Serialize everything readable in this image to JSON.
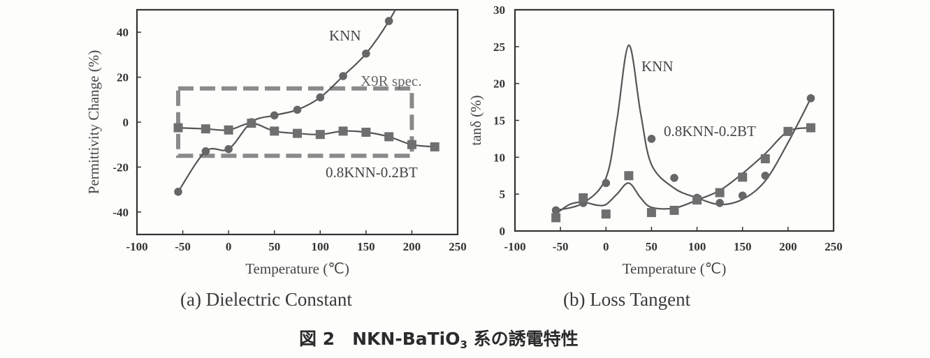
{
  "chart_data": [
    {
      "type": "line",
      "caption": "(a) Dielectric Constant",
      "xlabel": "Temperature (℃)",
      "ylabel": "Permittivity Change (%)",
      "xlim": [
        -100,
        250
      ],
      "ylim": [
        -50,
        50
      ],
      "xticks": [
        -100,
        -50,
        0,
        50,
        100,
        150,
        200,
        250
      ],
      "yticks": [
        -40,
        -20,
        0,
        20,
        40
      ],
      "grid": false,
      "series": [
        {
          "name": "KNN",
          "marker": "circle",
          "x": [
            -55,
            -25,
            0,
            25,
            50,
            75,
            100,
            125,
            150,
            175
          ],
          "values": [
            -31,
            -13,
            -12,
            0,
            3,
            5.5,
            11,
            20.5,
            30.5,
            45
          ]
        },
        {
          "name": "0.8KNN-0.2BT",
          "marker": "square",
          "x": [
            -55,
            -25,
            0,
            25,
            50,
            75,
            100,
            125,
            150,
            175,
            200,
            225
          ],
          "values": [
            -2.5,
            -3,
            -3.5,
            -0.5,
            -4,
            -5,
            -5.5,
            -4,
            -4.5,
            -6.5,
            -10,
            -11
          ]
        }
      ],
      "annotations": [
        {
          "text": "X9R spec.",
          "type": "dashed-box",
          "x_range": [
            -55,
            200
          ],
          "y_range": [
            -15,
            15
          ]
        }
      ]
    },
    {
      "type": "line",
      "caption": "(b) Loss Tangent",
      "xlabel": "Temperature (℃)",
      "ylabel": "tanδ (%)",
      "xlim": [
        -100,
        250
      ],
      "ylim": [
        0,
        30
      ],
      "xticks": [
        -100,
        -50,
        0,
        50,
        100,
        150,
        200,
        250
      ],
      "yticks": [
        0,
        5,
        10,
        15,
        20,
        25,
        30
      ],
      "grid": false,
      "series": [
        {
          "name": "KNN",
          "marker": "circle",
          "x": [
            -55,
            -25,
            0,
            50,
            75,
            100,
            125,
            150,
            175,
            225
          ],
          "values": [
            2.8,
            3.8,
            6.5,
            12.5,
            7.2,
            4.5,
            3.8,
            4.8,
            7.5,
            18
          ]
        },
        {
          "name": "0.8KNN-0.2BT",
          "marker": "square",
          "x": [
            -55,
            -25,
            0,
            25,
            50,
            75,
            100,
            125,
            150,
            175,
            200,
            225
          ],
          "values": [
            1.8,
            4.5,
            2.3,
            7.5,
            2.5,
            2.8,
            4.2,
            5.2,
            7.3,
            9.8,
            13.5,
            14
          ]
        }
      ],
      "curves": {
        "KNN": {
          "x": [
            -55,
            -25,
            0,
            12,
            25,
            38,
            50,
            75,
            100,
            125,
            150,
            175,
            200,
            225
          ],
          "values": [
            2.8,
            3.8,
            7.2,
            15,
            25.2,
            16,
            9,
            5.8,
            4.5,
            3.6,
            4.3,
            6.8,
            12,
            18
          ]
        },
        "0.8KNN-0.2BT": {
          "x": [
            -55,
            -40,
            -25,
            -10,
            0,
            12,
            25,
            38,
            50,
            75,
            100,
            125,
            150,
            175,
            200,
            225
          ],
          "values": [
            2.3,
            3.6,
            3.9,
            3.5,
            3.6,
            5,
            6.5,
            4.5,
            3.2,
            3.1,
            4.2,
            5.5,
            7.8,
            10.5,
            13.5,
            14
          ]
        }
      }
    }
  ],
  "figure_title": {
    "prefix": "図 2　NKN-BaTiO",
    "sub": "3",
    "suffix": " 系の誘電特性"
  }
}
